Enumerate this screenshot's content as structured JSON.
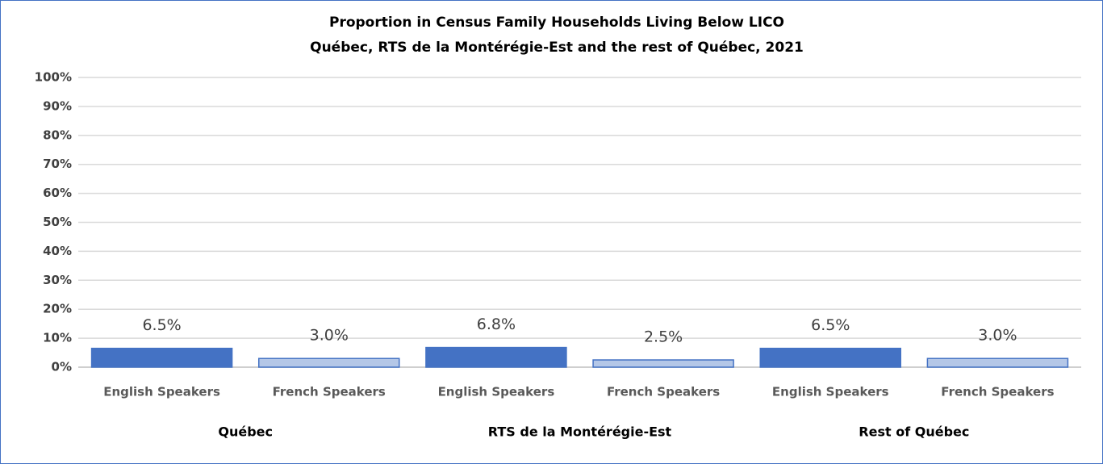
{
  "chart_data": {
    "type": "bar",
    "title": "Proportion  in Census Family Households Living Below LICO",
    "subtitle": "Québec, RTS de la Montérégie-Est and the rest of Québec, 2021",
    "groups": [
      {
        "name": "Québec",
        "categories": [
          "English Speakers",
          "French Speakers"
        ],
        "values": [
          6.5,
          3.0
        ],
        "value_labels": [
          "6.5%",
          "3.0%"
        ]
      },
      {
        "name": "RTS de la Montérégie-Est",
        "categories": [
          "English Speakers",
          "French Speakers"
        ],
        "values": [
          6.8,
          2.5
        ],
        "value_labels": [
          "6.8%",
          "2.5%"
        ]
      },
      {
        "name": "Rest of Québec",
        "categories": [
          "English Speakers",
          "French Speakers"
        ],
        "values": [
          6.5,
          3.0
        ],
        "value_labels": [
          "6.5%",
          "3.0%"
        ]
      }
    ],
    "colors": [
      "#4472c4",
      "#b4c7e7"
    ],
    "ylim": [
      0,
      100
    ],
    "yticks": [
      {
        "value": 0,
        "label": "0%"
      },
      {
        "value": 10,
        "label": "10%"
      },
      {
        "value": 20,
        "label": "20%"
      },
      {
        "value": 30,
        "label": "30%"
      },
      {
        "value": 40,
        "label": "40%"
      },
      {
        "value": 50,
        "label": "50%"
      },
      {
        "value": 60,
        "label": "60%"
      },
      {
        "value": 70,
        "label": "70%"
      },
      {
        "value": 80,
        "label": "80%"
      },
      {
        "value": 90,
        "label": "90%"
      },
      {
        "value": 100,
        "label": "100%"
      }
    ],
    "grid": true
  }
}
